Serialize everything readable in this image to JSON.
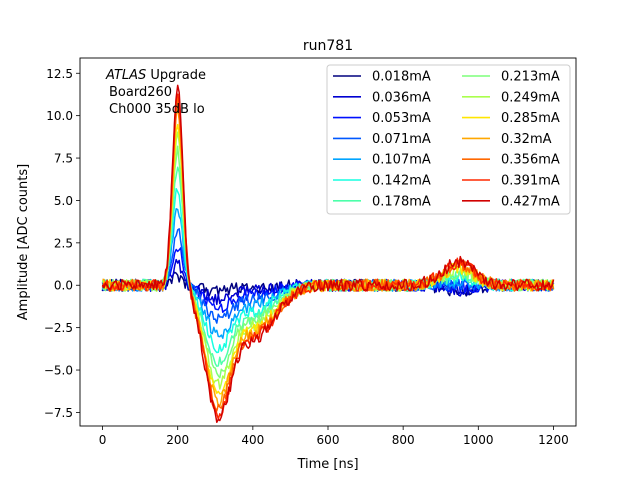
{
  "chart_data": {
    "type": "line",
    "title": "run781",
    "xlabel": "Time [ns]",
    "ylabel": "Amplitude [ADC counts]",
    "xlim": [
      -60,
      1260
    ],
    "ylim": [
      -8.3,
      13.4
    ],
    "xticks": [
      0,
      200,
      400,
      600,
      800,
      1000,
      1200
    ],
    "yticks": [
      -7.5,
      -5.0,
      -2.5,
      0.0,
      2.5,
      5.0,
      7.5,
      10.0,
      12.5
    ],
    "ytick_labels": [
      "−7.5",
      "−5.0",
      "−2.5",
      "0.0",
      "2.5",
      "5.0",
      "7.5",
      "10.0",
      "12.5"
    ],
    "annotation": {
      "italic": "ATLAS",
      "rest": " Upgrade",
      "line2": "Board260",
      "line3": "Ch000 35dB lo"
    },
    "legend_position": "top-right",
    "legend_columns": 2,
    "grid": false,
    "noise_amplitude": 0.35,
    "series": [
      {
        "name": "0.018mA",
        "color": "#00007f",
        "peak": 0.5,
        "undershoot": 0.3
      },
      {
        "name": "0.036mA",
        "color": "#0000d1",
        "peak": 1.3,
        "undershoot": 0.7
      },
      {
        "name": "0.053mA",
        "color": "#0010ff",
        "peak": 2.3,
        "undershoot": 1.2
      },
      {
        "name": "0.071mA",
        "color": "#0058ff",
        "peak": 3.2,
        "undershoot": 1.8
      },
      {
        "name": "0.107mA",
        "color": "#00a4ff",
        "peak": 4.6,
        "undershoot": 2.6
      },
      {
        "name": "0.142mA",
        "color": "#16ffe1",
        "peak": 5.8,
        "undershoot": 3.3
      },
      {
        "name": "0.178mA",
        "color": "#4dffaa",
        "peak": 7.0,
        "undershoot": 4.0
      },
      {
        "name": "0.213mA",
        "color": "#7dff7a",
        "peak": 7.9,
        "undershoot": 4.6
      },
      {
        "name": "0.249mA",
        "color": "#aaff4d",
        "peak": 8.8,
        "undershoot": 5.1
      },
      {
        "name": "0.285mA",
        "color": "#ffe600",
        "peak": 9.6,
        "undershoot": 5.6
      },
      {
        "name": "0.32mA",
        "color": "#ffa700",
        "peak": 10.4,
        "undershoot": 6.0
      },
      {
        "name": "0.356mA",
        "color": "#ff6800",
        "peak": 11.0,
        "undershoot": 6.4
      },
      {
        "name": "0.391mA",
        "color": "#ff2900",
        "peak": 11.6,
        "undershoot": 6.7
      },
      {
        "name": "0.427mA",
        "color": "#d10000",
        "peak": 12.0,
        "undershoot": 6.9
      }
    ]
  }
}
